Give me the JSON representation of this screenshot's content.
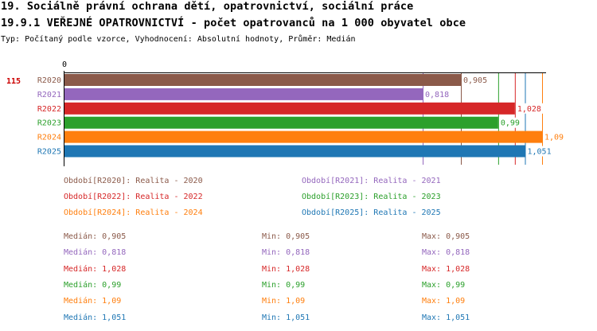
{
  "header": {
    "title1": "19. Sociálně právní ochrana dětí, opatrovnictví, sociální práce",
    "title2": "19.9.1 VEŘEJNÉ OPATROVNICTVÍ - počet opatrovanců na 1 000 obyvatel obce",
    "subtitle": "Typ: Počítaný podle vzorce, Vyhodnocení: Absolutní hodnoty, Průměr: Medián"
  },
  "chart_data": {
    "type": "bar",
    "orientation": "horizontal",
    "row_label": "115",
    "axis_zero_label": "0",
    "xlim": [
      0,
      1.09
    ],
    "categories": [
      "R2020",
      "R2021",
      "R2022",
      "R2023",
      "R2024",
      "R2025"
    ],
    "values": [
      0.905,
      0.818,
      1.028,
      0.99,
      1.09,
      1.051
    ],
    "value_labels": [
      "0,905",
      "0,818",
      "1,028",
      "0,99",
      "1,09",
      "1,051"
    ],
    "colors": [
      "#8b5a4a",
      "#9467bd",
      "#d62728",
      "#2ca02c",
      "#ff7f0e",
      "#1f77b4"
    ],
    "legend": [
      "Období[R2020]: Realita - 2020",
      "Období[R2021]: Realita - 2021",
      "Období[R2022]: Realita - 2022",
      "Období[R2023]: Realita - 2023",
      "Období[R2024]: Realita - 2024",
      "Období[R2025]: Realita - 2025"
    ],
    "stats": [
      {
        "median": "Medián: 0,905",
        "min": "Min: 0,905",
        "max": "Max: 0,905"
      },
      {
        "median": "Medián: 0,818",
        "min": "Min: 0,818",
        "max": "Max: 0,818"
      },
      {
        "median": "Medián: 1,028",
        "min": "Min: 1,028",
        "max": "Max: 1,028"
      },
      {
        "median": "Medián: 0,99",
        "min": "Min: 0,99",
        "max": "Max: 0,99"
      },
      {
        "median": "Medián: 1,09",
        "min": "Min: 1,09",
        "max": "Max: 1,09"
      },
      {
        "median": "Medián: 1,051",
        "min": "Min: 1,051",
        "max": "Max: 1,051"
      }
    ]
  }
}
